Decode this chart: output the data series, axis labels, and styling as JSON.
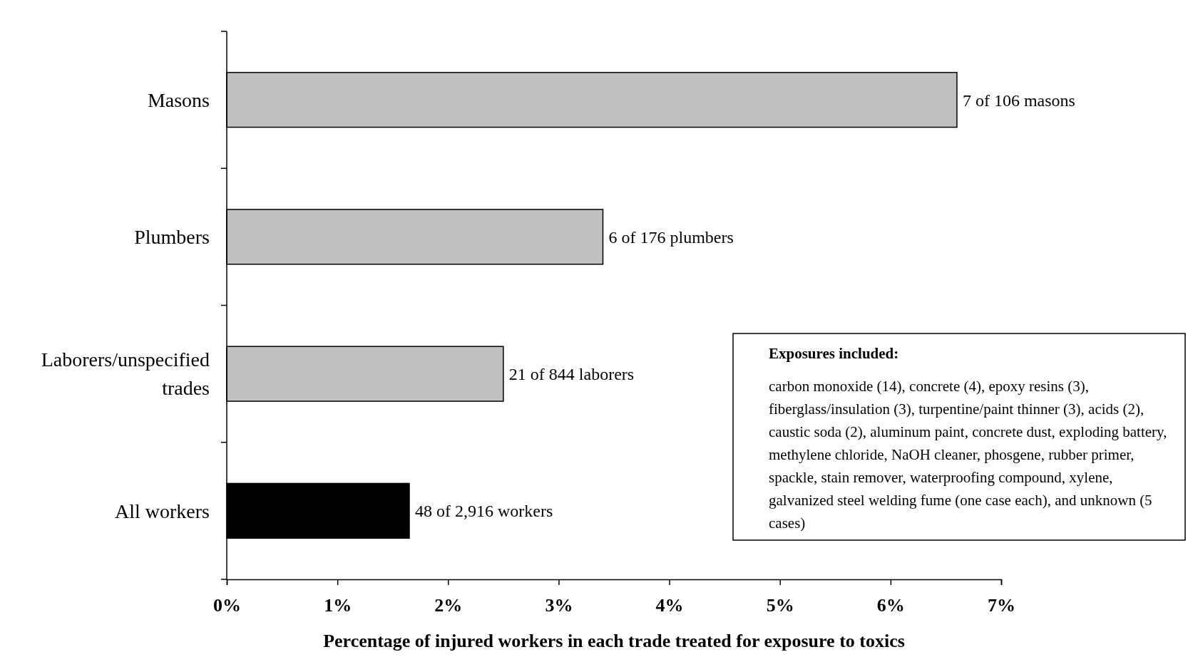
{
  "chart_data": {
    "type": "bar",
    "orientation": "horizontal",
    "xlabel": "Percentage of injured workers in each trade treated for exposure to toxics",
    "categories": [
      "Masons",
      "Plumbers",
      "Laborers/unspecified trades",
      "All workers"
    ],
    "values": [
      6.6,
      3.4,
      2.5,
      1.65
    ],
    "colors": [
      "#c0c0c0",
      "#c0c0c0",
      "#c0c0c0",
      "#000000"
    ],
    "xlim": [
      0,
      7
    ],
    "xticks": [
      {
        "value": 0,
        "label": "0%"
      },
      {
        "value": 1,
        "label": "1%"
      },
      {
        "value": 2,
        "label": "2%"
      },
      {
        "value": 3,
        "label": "3%"
      },
      {
        "value": 4,
        "label": "4%"
      },
      {
        "value": 5,
        "label": "5%"
      },
      {
        "value": 6,
        "label": "6%"
      },
      {
        "value": 7,
        "label": "7%"
      }
    ],
    "annotations": [
      {
        "text": "7 of 106 masons",
        "x": 6.6,
        "y": "Masons"
      },
      {
        "text": "6 of 176 plumbers",
        "x": 3.4,
        "y": "Plumbers"
      },
      {
        "text": "21 of 844 laborers",
        "x": 2.5,
        "y": "Laborers/unspecified trades"
      },
      {
        "text": "48 of 2,916 workers",
        "x": 1.65,
        "y": "All workers"
      },
      "Exposures included:",
      "carbon monoxide (14), concrete (4), epoxy resins (3), fiberglass/insulation (3), turpentine/paint thinner (3), acids (2), caustic soda (2), aluminum paint, concrete dust, exploding battery, methylene chloride, NaOH cleaner, phosgene, rubber primer, spackle, stain remover, waterproofing compound, xylene, galvanized steel welding fume (one case each), and unknown (5 cases)"
    ],
    "grid": false
  }
}
